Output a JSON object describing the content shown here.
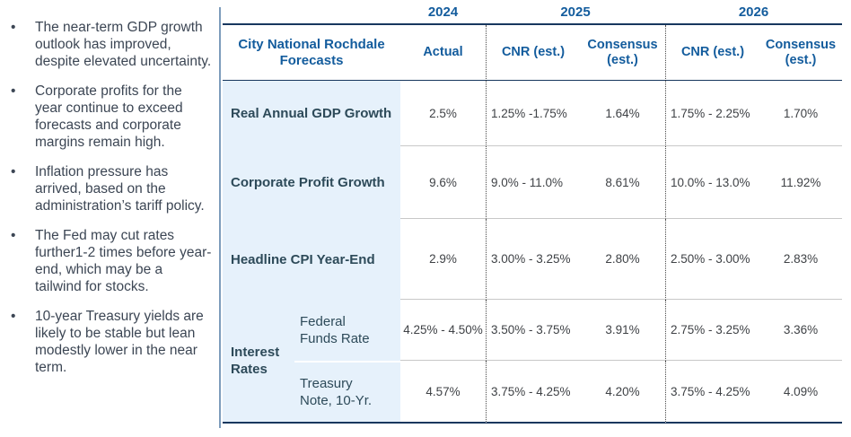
{
  "colors": {
    "header_blue": "#135c9d",
    "label_navy": "#2d4a59",
    "value_gray": "#3f4246",
    "label_column_bg": "#e6f1fb",
    "rule_navy": "#17375e",
    "divider_blue": "#7d9cbc"
  },
  "bullets": {
    "items": [
      "The near-term GDP growth outlook has improved, despite elevated uncertainty.",
      "Corporate profits for the year continue to exceed forecasts and corporate margins remain high.",
      "Inflation pressure has arrived, based on the administration’s tariff policy.",
      "The Fed may cut rates further1-2 times before year-end, which may be a tailwind for stocks.",
      "10-year Treasury yields are likely to be stable but lean modestly lower in the near term."
    ],
    "marker": "•"
  },
  "table": {
    "title": "City National Rochdale Forecasts",
    "years": [
      "2024",
      "2025",
      "2026"
    ],
    "col_headers": {
      "actual": "Actual",
      "cnr": "CNR (est.)",
      "consensus": "Consensus (est.)"
    },
    "rows": [
      {
        "label": "Real Annual GDP Growth",
        "actual": "2.5%",
        "cnr_2025": "1.25% -1.75%",
        "consensus_2025": "1.64%",
        "cnr_2026": "1.75% - 2.25%",
        "consensus_2026": "1.70%"
      },
      {
        "label": "Corporate Profit Growth",
        "actual": "9.6%",
        "cnr_2025": "9.0% - 11.0%",
        "consensus_2025": "8.61%",
        "cnr_2026": "10.0% - 13.0%",
        "consensus_2026": "11.92%"
      },
      {
        "label": "Headline CPI Year-End",
        "actual": "2.9%",
        "cnr_2025": "3.00% - 3.25%",
        "consensus_2025": "2.80%",
        "cnr_2026": "2.50% - 3.00%",
        "consensus_2026": "2.83%"
      }
    ],
    "interest_rates": {
      "group_label": "Interest Rates",
      "rows": [
        {
          "label": "Federal Funds Rate",
          "actual": "4.25% - 4.50%",
          "cnr_2025": "3.50% - 3.75%",
          "consensus_2025": "3.91%",
          "cnr_2026": "2.75% - 3.25%",
          "consensus_2026": "3.36%"
        },
        {
          "label": "Treasury Note, 10-Yr.",
          "actual": "4.57%",
          "cnr_2025": "3.75% - 4.25%",
          "consensus_2025": "4.20%",
          "cnr_2026": "3.75% - 4.25%",
          "consensus_2026": "4.09%"
        }
      ]
    }
  }
}
